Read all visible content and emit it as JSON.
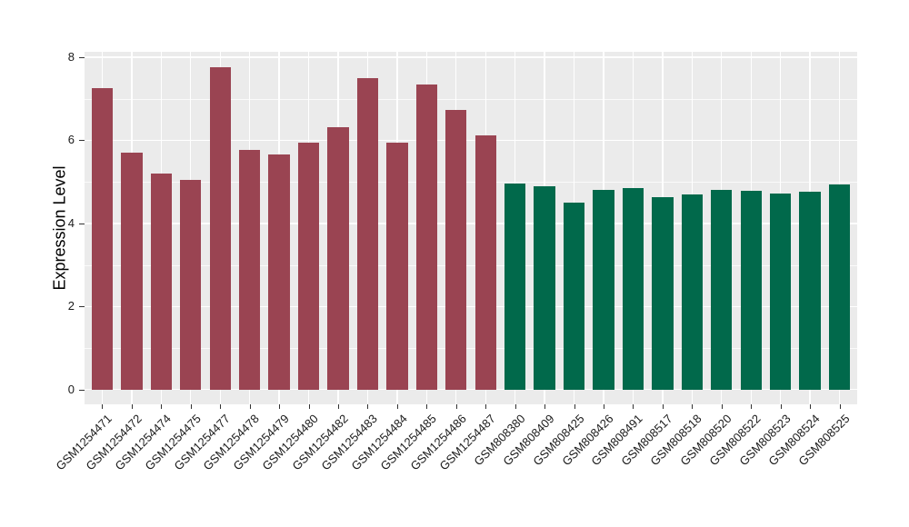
{
  "chart_data": {
    "type": "bar",
    "title": "",
    "xlabel": "",
    "ylabel": "Expression Level",
    "ylim": [
      0,
      8.13
    ],
    "yticks": [
      0,
      2,
      4,
      6,
      8
    ],
    "yminorticks": [
      1,
      3,
      5,
      7
    ],
    "grid": "white major and minor gridlines on gray panel",
    "legend_position": "none",
    "panel_bg_color": "#EBEBEB",
    "gridline_color": "#FFFFFF",
    "axis_text_color": "#1A1A1A",
    "series": [
      {
        "color": "#9A4452",
        "categories": [
          "GSM1254471",
          "GSM1254472",
          "GSM1254474",
          "GSM1254475",
          "GSM1254477",
          "GSM1254478",
          "GSM1254479",
          "GSM1254480",
          "GSM1254482",
          "GSM1254483",
          "GSM1254484",
          "GSM1254485",
          "GSM1254486",
          "GSM1254487"
        ],
        "values": [
          7.25,
          5.7,
          5.19,
          5.05,
          7.76,
          5.76,
          5.67,
          5.94,
          6.32,
          7.5,
          5.94,
          7.34,
          6.74,
          6.11
        ]
      },
      {
        "color": "#01694B",
        "categories": [
          "GSM808380",
          "GSM808409",
          "GSM808425",
          "GSM808426",
          "GSM808491",
          "GSM808517",
          "GSM808518",
          "GSM808520",
          "GSM808522",
          "GSM808523",
          "GSM808524",
          "GSM808525"
        ],
        "values": [
          4.96,
          4.89,
          4.49,
          4.8,
          4.85,
          4.63,
          4.7,
          4.8,
          4.78,
          4.72,
          4.77,
          4.93
        ]
      }
    ]
  }
}
